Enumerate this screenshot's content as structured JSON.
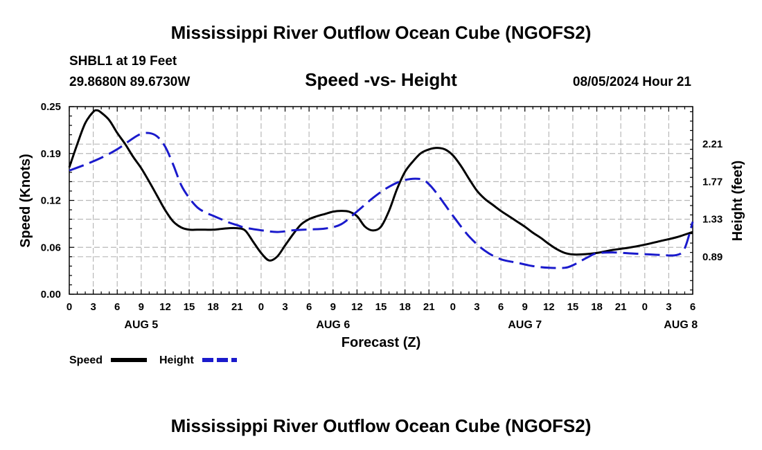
{
  "header": {
    "title": "Mississippi River Outflow Ocean Cube (NGOFS2)",
    "station": "SHBL1 at 19 Feet",
    "coords": "29.8680N  89.6730W",
    "subtitle": "Speed -vs- Height",
    "datetime": "08/05/2024 Hour 21"
  },
  "footer": {
    "title": "Mississippi River Outflow Ocean Cube (NGOFS2)"
  },
  "legend": {
    "speed_label": "Speed",
    "height_label": "Height"
  },
  "colors": {
    "speed": "#000000",
    "height": "#1a1acc",
    "grid": "#b8b8b8"
  },
  "chart_data": {
    "type": "line",
    "xlabel": "Forecast (Z)",
    "ylabel_left": "Speed (Knots)",
    "ylabel_right": "Height (feet)",
    "x_range_hours": [
      0,
      78
    ],
    "x_tick_labels": [
      "0",
      "3",
      "6",
      "9",
      "12",
      "15",
      "18",
      "21",
      "0",
      "3",
      "6",
      "9",
      "12",
      "15",
      "18",
      "21",
      "0",
      "3",
      "6",
      "9",
      "12",
      "15",
      "18",
      "21",
      "0",
      "3",
      "6"
    ],
    "date_labels": [
      {
        "label": "AUG 5",
        "hour": 9
      },
      {
        "label": "AUG 6",
        "hour": 33
      },
      {
        "label": "AUG 7",
        "hour": 57
      },
      {
        "label": "AUG 8",
        "hour": 76.5
      }
    ],
    "left_axis": {
      "ylim": [
        0,
        0.25
      ],
      "ticks": [
        "0.00",
        "0.06",
        "0.12",
        "0.19",
        "0.25"
      ],
      "tick_values": [
        0,
        0.0625,
        0.125,
        0.1875,
        0.25
      ]
    },
    "right_axis": {
      "ylim": [
        0.45,
        2.65
      ],
      "ticks": [
        "0.89",
        "1.33",
        "1.77",
        "2.21"
      ],
      "tick_values": [
        0.89,
        1.33,
        1.77,
        2.21
      ]
    },
    "series": [
      {
        "name": "Speed",
        "axis": "left",
        "style": "solid",
        "x": [
          0,
          1,
          2,
          3,
          3.5,
          4,
          5,
          6,
          7,
          8,
          9,
          10,
          11,
          12,
          13,
          14,
          15,
          16,
          17,
          18,
          19,
          20,
          21,
          22,
          23,
          24,
          25,
          26,
          27,
          28,
          29,
          30,
          31,
          32,
          33,
          34,
          35,
          36,
          37,
          38,
          39,
          40,
          41,
          42,
          43,
          44,
          45,
          46,
          47,
          48,
          49,
          50,
          51,
          52,
          53,
          54,
          55,
          56,
          57,
          58,
          59,
          60,
          61,
          62,
          63,
          64,
          66,
          68,
          70,
          72,
          74,
          76,
          78
        ],
        "values": [
          0.169,
          0.2,
          0.228,
          0.243,
          0.245,
          0.242,
          0.232,
          0.215,
          0.2,
          0.183,
          0.168,
          0.15,
          0.131,
          0.112,
          0.097,
          0.089,
          0.086,
          0.086,
          0.086,
          0.086,
          0.087,
          0.088,
          0.088,
          0.085,
          0.07,
          0.055,
          0.045,
          0.05,
          0.065,
          0.08,
          0.093,
          0.1,
          0.104,
          0.107,
          0.11,
          0.111,
          0.11,
          0.104,
          0.09,
          0.085,
          0.09,
          0.111,
          0.14,
          0.163,
          0.177,
          0.188,
          0.193,
          0.195,
          0.193,
          0.185,
          0.171,
          0.154,
          0.138,
          0.127,
          0.119,
          0.111,
          0.104,
          0.097,
          0.09,
          0.082,
          0.075,
          0.067,
          0.06,
          0.055,
          0.053,
          0.053,
          0.055,
          0.059,
          0.062,
          0.066,
          0.071,
          0.076,
          0.083
        ]
      },
      {
        "name": "Height",
        "axis": "right",
        "style": "dashed",
        "x": [
          0,
          2,
          4,
          6,
          8,
          9,
          10,
          11,
          12,
          13,
          14,
          15,
          16,
          17,
          18,
          19,
          20,
          21,
          22,
          24,
          26,
          28,
          30,
          32,
          34,
          36,
          38,
          40,
          42,
          44,
          45,
          46,
          47,
          48,
          50,
          52,
          54,
          56,
          58,
          60,
          62,
          63,
          64,
          65,
          66,
          68,
          70,
          72,
          74,
          76,
          77,
          78
        ],
        "values": [
          1.9,
          1.97,
          2.05,
          2.15,
          2.28,
          2.33,
          2.34,
          2.3,
          2.18,
          1.97,
          1.73,
          1.58,
          1.47,
          1.41,
          1.37,
          1.33,
          1.29,
          1.26,
          1.23,
          1.2,
          1.18,
          1.2,
          1.21,
          1.22,
          1.27,
          1.42,
          1.58,
          1.71,
          1.79,
          1.8,
          1.74,
          1.63,
          1.5,
          1.37,
          1.13,
          0.96,
          0.86,
          0.82,
          0.78,
          0.76,
          0.76,
          0.79,
          0.84,
          0.89,
          0.93,
          0.94,
          0.93,
          0.92,
          0.91,
          0.91,
          0.99,
          1.3
        ]
      }
    ]
  }
}
